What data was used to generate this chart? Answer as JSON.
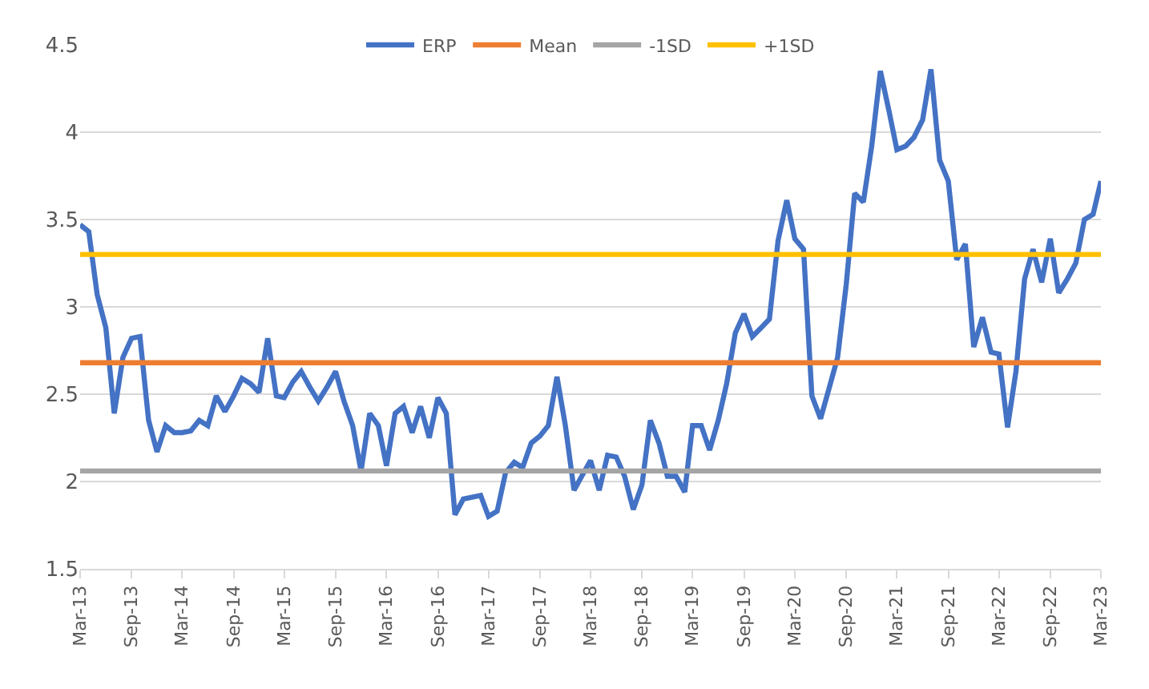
{
  "chart_data": {
    "type": "line",
    "x": [
      "2013-03",
      "2013-04",
      "2013-05",
      "2013-06",
      "2013-07",
      "2013-08",
      "2013-09",
      "2013-10",
      "2013-11",
      "2013-12",
      "2014-01",
      "2014-02",
      "2014-03",
      "2014-04",
      "2014-05",
      "2014-06",
      "2014-07",
      "2014-08",
      "2014-09",
      "2014-10",
      "2014-11",
      "2014-12",
      "2015-01",
      "2015-02",
      "2015-03",
      "2015-04",
      "2015-05",
      "2015-06",
      "2015-07",
      "2015-08",
      "2015-09",
      "2015-10",
      "2015-11",
      "2015-12",
      "2016-01",
      "2016-02",
      "2016-03",
      "2016-04",
      "2016-05",
      "2016-06",
      "2016-07",
      "2016-08",
      "2016-09",
      "2016-10",
      "2016-11",
      "2016-12",
      "2017-01",
      "2017-02",
      "2017-03",
      "2017-04",
      "2017-05",
      "2017-06",
      "2017-07",
      "2017-08",
      "2017-09",
      "2017-10",
      "2017-11",
      "2017-12",
      "2018-01",
      "2018-02",
      "2018-03",
      "2018-04",
      "2018-05",
      "2018-06",
      "2018-07",
      "2018-08",
      "2018-09",
      "2018-10",
      "2018-11",
      "2018-12",
      "2019-01",
      "2019-02",
      "2019-03",
      "2019-04",
      "2019-05",
      "2019-06",
      "2019-07",
      "2019-08",
      "2019-09",
      "2019-10",
      "2019-11",
      "2019-12",
      "2020-01",
      "2020-02",
      "2020-03",
      "2020-04",
      "2020-05",
      "2020-06",
      "2020-07",
      "2020-08",
      "2020-09",
      "2020-10",
      "2020-11",
      "2020-12",
      "2021-01",
      "2021-02",
      "2021-03",
      "2021-04",
      "2021-05",
      "2021-06",
      "2021-07",
      "2021-08",
      "2021-09",
      "2021-10",
      "2021-11",
      "2021-12",
      "2022-01",
      "2022-02",
      "2022-03",
      "2022-04",
      "2022-05",
      "2022-06",
      "2022-07",
      "2022-08",
      "2022-09",
      "2022-10",
      "2022-11",
      "2022-12",
      "2023-01",
      "2023-02",
      "2023-03"
    ],
    "series": [
      {
        "name": "ERP",
        "color": "#4472c4",
        "values": [
          3.47,
          3.43,
          3.07,
          2.88,
          2.39,
          2.71,
          2.82,
          2.83,
          2.35,
          2.17,
          2.32,
          2.28,
          2.28,
          2.29,
          2.35,
          2.32,
          2.49,
          2.4,
          2.49,
          2.59,
          2.56,
          2.51,
          2.82,
          2.49,
          2.48,
          2.57,
          2.63,
          2.54,
          2.46,
          2.54,
          2.63,
          2.46,
          2.32,
          2.06,
          2.39,
          2.32,
          2.09,
          2.39,
          2.43,
          2.28,
          2.43,
          2.25,
          2.48,
          2.39,
          1.81,
          1.9,
          1.91,
          1.92,
          1.8,
          1.83,
          2.05,
          2.11,
          2.08,
          2.22,
          2.26,
          2.32,
          2.6,
          2.32,
          1.95,
          2.04,
          2.12,
          1.95,
          2.15,
          2.14,
          2.03,
          1.84,
          1.98,
          2.35,
          2.22,
          2.03,
          2.03,
          1.94,
          2.32,
          2.32,
          2.18,
          2.35,
          2.56,
          2.85,
          2.96,
          2.83,
          2.88,
          2.93,
          3.38,
          3.61,
          3.39,
          3.33,
          2.49,
          2.36,
          2.53,
          2.71,
          3.13,
          3.65,
          3.6,
          3.92,
          4.35,
          4.12,
          3.9,
          3.92,
          3.97,
          4.07,
          4.36,
          3.84,
          3.72,
          3.27,
          3.36,
          2.77,
          2.94,
          2.74,
          2.73,
          2.31,
          2.63,
          3.16,
          3.33,
          3.14,
          3.39,
          3.08,
          3.16,
          3.25,
          3.5,
          3.53,
          3.72
        ]
      },
      {
        "name": "Mean",
        "color": "#ed7d31",
        "x": [
          "2013-03",
          "2023-03"
        ],
        "values": [
          2.68,
          2.68
        ]
      },
      {
        "name": "-1SD",
        "color": "#a5a5a5",
        "x": [
          "2013-03",
          "2023-03"
        ],
        "values": [
          2.06,
          2.06
        ]
      },
      {
        "name": "+1SD",
        "color": "#ffc000",
        "x": [
          "2013-03",
          "2023-03"
        ],
        "values": [
          3.3,
          3.3
        ]
      }
    ],
    "xlim": [
      "2013-03",
      "2023-03"
    ],
    "xticks": [
      {
        "value": "2013-03",
        "label": "Mar-13"
      },
      {
        "value": "2013-09",
        "label": "Sep-13"
      },
      {
        "value": "2014-03",
        "label": "Mar-14"
      },
      {
        "value": "2014-09",
        "label": "Sep-14"
      },
      {
        "value": "2015-03",
        "label": "Mar-15"
      },
      {
        "value": "2015-09",
        "label": "Sep-15"
      },
      {
        "value": "2016-03",
        "label": "Mar-16"
      },
      {
        "value": "2016-09",
        "label": "Sep-16"
      },
      {
        "value": "2017-03",
        "label": "Mar-17"
      },
      {
        "value": "2017-09",
        "label": "Sep-17"
      },
      {
        "value": "2018-03",
        "label": "Mar-18"
      },
      {
        "value": "2018-09",
        "label": "Sep-18"
      },
      {
        "value": "2019-03",
        "label": "Mar-19"
      },
      {
        "value": "2019-09",
        "label": "Sep-19"
      },
      {
        "value": "2020-03",
        "label": "Mar-20"
      },
      {
        "value": "2020-09",
        "label": "Sep-20"
      },
      {
        "value": "2021-03",
        "label": "Mar-21"
      },
      {
        "value": "2021-09",
        "label": "Sep-21"
      },
      {
        "value": "2022-03",
        "label": "Mar-22"
      },
      {
        "value": "2022-09",
        "label": "Sep-22"
      },
      {
        "value": "2023-03",
        "label": "Mar-23"
      }
    ],
    "ylim": [
      1.5,
      4.5
    ],
    "yticks": [
      1.5,
      2,
      2.5,
      3,
      3.5,
      4,
      4.5
    ],
    "grid": "y",
    "legend": "top",
    "marker": "none",
    "line_style": "solid"
  }
}
